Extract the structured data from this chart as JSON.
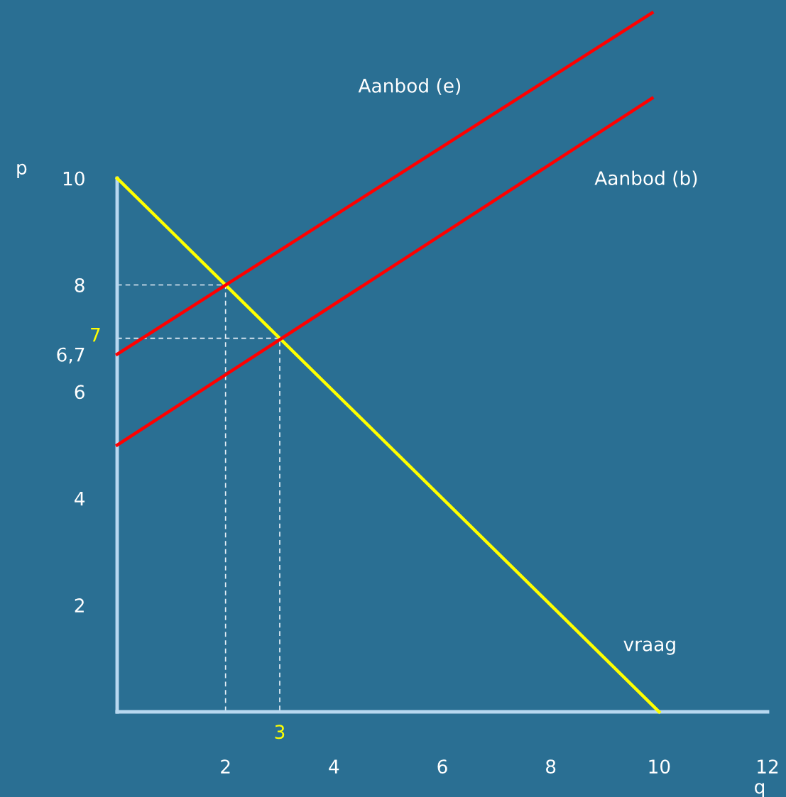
{
  "chart_data": {
    "type": "line",
    "xlabel": "q",
    "ylabel": "p",
    "xlim": [
      0,
      12
    ],
    "ylim": [
      0,
      13.3
    ],
    "xticks": [
      2,
      4,
      6,
      8,
      10,
      12
    ],
    "yticks": [
      2,
      4,
      6,
      {
        "value": 6.7,
        "label": "6,7"
      },
      8,
      10
    ],
    "grid": false,
    "legend": false,
    "line_style": "solid",
    "marker": "none",
    "series": [
      {
        "name": "vraag",
        "color": "#ffff00",
        "x": [
          0,
          10
        ],
        "values": [
          10,
          0
        ]
      },
      {
        "name": "Aanbod (e)",
        "color": "#ff0000",
        "x": [
          0,
          9.87
        ],
        "values": [
          6.7,
          13.1
        ]
      },
      {
        "name": "Aanbod (b)",
        "color": "#ff0000",
        "x": [
          0,
          9.87
        ],
        "values": [
          5,
          11.5
        ]
      },
      {
        "color": "#e8f0f8",
        "x": [
          0,
          2,
          2
        ],
        "values": [
          8,
          8,
          0
        ],
        "line_style": "dashed"
      },
      {
        "color": "#e8f0f8",
        "x": [
          0,
          3,
          3
        ],
        "values": [
          7,
          7,
          0
        ],
        "line_style": "dashed"
      }
    ],
    "annotations": [
      {
        "text": "7",
        "x": 0,
        "y": 7
      },
      {
        "text": "3",
        "x": 3,
        "y": 0
      }
    ]
  }
}
